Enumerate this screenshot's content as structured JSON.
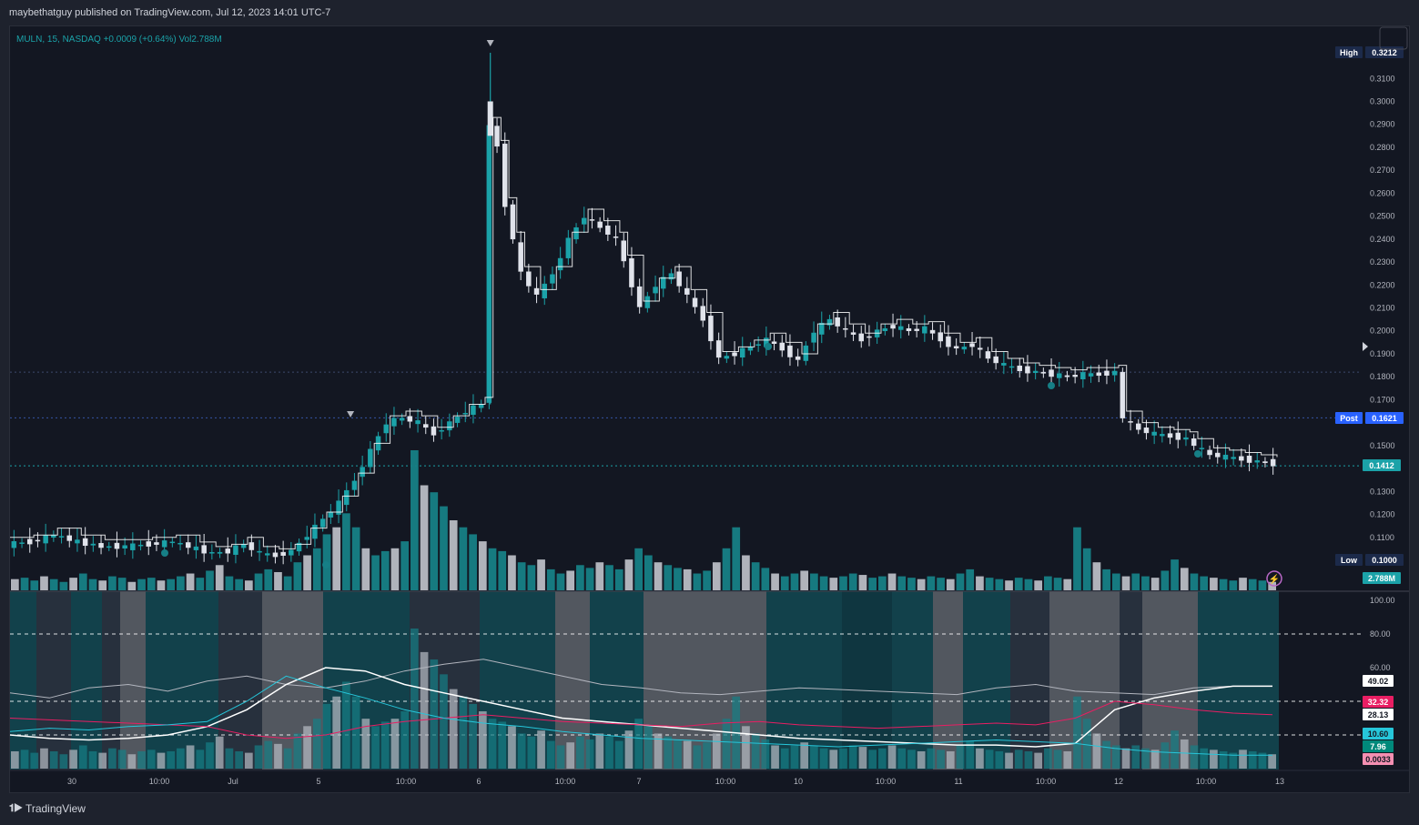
{
  "header": {
    "published": "maybethatguy published on TradingView.com, Jul 12, 2023 14:01 UTC-7"
  },
  "legend": {
    "symbol": "MULN, 15, NASDAQ",
    "change": "+0.0009 (+0.64%)",
    "volume": "Vol2.788M"
  },
  "footer": {
    "brand": "TradingView"
  },
  "colors": {
    "bg": "#131722",
    "up": "#1ba2a8",
    "down": "#e0e3eb",
    "accent_blue": "#2962ff",
    "teal_label": "#22a0a8",
    "pink": "#e91e63"
  },
  "chart_data": [
    {
      "type": "candlestick",
      "title": "",
      "price_axis_ticks": [
        "0.3100",
        "0.3000",
        "0.2900",
        "0.2800",
        "0.2700",
        "0.2600",
        "0.2500",
        "0.2400",
        "0.2300",
        "0.2200",
        "0.2100",
        "0.2000",
        "0.1900",
        "0.1800",
        "0.1700",
        "0.1500",
        "0.1300",
        "0.1200",
        "0.1100"
      ],
      "ylim": [
        0.1,
        0.3212
      ],
      "x_tick_labels": [
        "30",
        "10:00",
        "Jul",
        "5",
        "10:00",
        "6",
        "10:00",
        "7",
        "10:00",
        "10",
        "10:00",
        "11",
        "10:00",
        "12",
        "10:00",
        "13"
      ],
      "price_path": [
        [
          0,
          0.107
        ],
        [
          3,
          0.108
        ],
        [
          6,
          0.111
        ],
        [
          9,
          0.108
        ],
        [
          12,
          0.106
        ],
        [
          15,
          0.106
        ],
        [
          18,
          0.107
        ],
        [
          21,
          0.108
        ],
        [
          24,
          0.105
        ],
        [
          26,
          0.103
        ],
        [
          28,
          0.104
        ],
        [
          30,
          0.107
        ],
        [
          32,
          0.103
        ],
        [
          34,
          0.102
        ],
        [
          36,
          0.104
        ],
        [
          38,
          0.111
        ],
        [
          40,
          0.118
        ],
        [
          42,
          0.125
        ],
        [
          44,
          0.135
        ],
        [
          46,
          0.148
        ],
        [
          48,
          0.16
        ],
        [
          50,
          0.162
        ],
        [
          52,
          0.16
        ],
        [
          54,
          0.155
        ],
        [
          56,
          0.16
        ],
        [
          58,
          0.165
        ],
        [
          60,
          0.168
        ],
        [
          61,
          0.29
        ],
        [
          62,
          0.28
        ],
        [
          63,
          0.255
        ],
        [
          64,
          0.24
        ],
        [
          65,
          0.225
        ],
        [
          67,
          0.215
        ],
        [
          69,
          0.225
        ],
        [
          71,
          0.24
        ],
        [
          73,
          0.25
        ],
        [
          75,
          0.245
        ],
        [
          77,
          0.24
        ],
        [
          78,
          0.23
        ],
        [
          80,
          0.21
        ],
        [
          82,
          0.22
        ],
        [
          84,
          0.225
        ],
        [
          86,
          0.215
        ],
        [
          88,
          0.205
        ],
        [
          90,
          0.188
        ],
        [
          92,
          0.19
        ],
        [
          94,
          0.193
        ],
        [
          96,
          0.196
        ],
        [
          98,
          0.192
        ],
        [
          100,
          0.187
        ],
        [
          102,
          0.2
        ],
        [
          104,
          0.205
        ],
        [
          106,
          0.2
        ],
        [
          108,
          0.196
        ],
        [
          110,
          0.2
        ],
        [
          112,
          0.202
        ],
        [
          114,
          0.2
        ],
        [
          116,
          0.201
        ],
        [
          118,
          0.196
        ],
        [
          120,
          0.192
        ],
        [
          122,
          0.194
        ],
        [
          124,
          0.188
        ],
        [
          126,
          0.185
        ],
        [
          128,
          0.183
        ],
        [
          130,
          0.182
        ],
        [
          132,
          0.181
        ],
        [
          134,
          0.18
        ],
        [
          136,
          0.181
        ],
        [
          138,
          0.181
        ],
        [
          140,
          0.182
        ],
        [
          141,
          0.162
        ],
        [
          143,
          0.157
        ],
        [
          145,
          0.155
        ],
        [
          147,
          0.154
        ],
        [
          149,
          0.153
        ],
        [
          150,
          0.15
        ],
        [
          152,
          0.146
        ],
        [
          154,
          0.145
        ],
        [
          156,
          0.144
        ],
        [
          158,
          0.143
        ],
        [
          160,
          0.142
        ]
      ],
      "volume_bars": [
        0.08,
        0.09,
        0.07,
        0.1,
        0.08,
        0.06,
        0.09,
        0.12,
        0.08,
        0.07,
        0.1,
        0.09,
        0.06,
        0.08,
        0.09,
        0.07,
        0.08,
        0.1,
        0.12,
        0.09,
        0.14,
        0.18,
        0.1,
        0.08,
        0.07,
        0.12,
        0.15,
        0.13,
        0.1,
        0.2,
        0.25,
        0.3,
        0.4,
        0.45,
        0.55,
        0.45,
        0.3,
        0.25,
        0.28,
        0.3,
        0.35,
        1.0,
        0.75,
        0.7,
        0.6,
        0.5,
        0.45,
        0.4,
        0.35,
        0.3,
        0.28,
        0.25,
        0.2,
        0.18,
        0.22,
        0.15,
        0.12,
        0.14,
        0.18,
        0.16,
        0.2,
        0.18,
        0.15,
        0.22,
        0.3,
        0.25,
        0.2,
        0.18,
        0.16,
        0.15,
        0.12,
        0.14,
        0.2,
        0.3,
        0.45,
        0.25,
        0.2,
        0.16,
        0.12,
        0.1,
        0.12,
        0.14,
        0.12,
        0.1,
        0.09,
        0.1,
        0.12,
        0.11,
        0.09,
        0.1,
        0.12,
        0.1,
        0.09,
        0.08,
        0.1,
        0.09,
        0.08,
        0.12,
        0.15,
        0.1,
        0.09,
        0.08,
        0.07,
        0.09,
        0.08,
        0.07,
        0.1,
        0.09,
        0.08,
        0.45,
        0.3,
        0.2,
        0.15,
        0.12,
        0.1,
        0.12,
        0.1,
        0.09,
        0.14,
        0.22,
        0.16,
        0.12,
        0.1,
        0.09,
        0.08,
        0.07,
        0.09,
        0.08,
        0.07,
        0.06
      ],
      "price_labels": {
        "high": {
          "tag": "High",
          "value": "0.3212"
        },
        "post": {
          "tag": "Post",
          "value": "0.1621"
        },
        "last": {
          "value": "0.1412"
        },
        "low": {
          "tag": "Low",
          "value": "0.1000"
        },
        "volume": {
          "value": "2.788M"
        }
      }
    },
    {
      "type": "line",
      "title": "",
      "oscillator_axis_ticks": [
        "100.00",
        "80.00",
        "60.00"
      ],
      "ylim": [
        0,
        100
      ],
      "levels": [
        80,
        40,
        20
      ],
      "series": [
        {
          "color": "#b2b5be",
          "values": [
            45,
            42,
            48,
            50,
            46,
            52,
            55,
            50,
            48,
            52,
            58,
            62,
            65,
            60,
            55,
            50,
            48,
            45,
            44,
            46,
            48,
            47,
            46,
            45,
            44,
            48,
            50,
            46,
            45,
            44,
            48,
            49,
            49
          ]
        },
        {
          "color": "#ffffff",
          "values": [
            20,
            18,
            17,
            18,
            20,
            25,
            35,
            50,
            60,
            58,
            50,
            45,
            40,
            35,
            30,
            28,
            26,
            24,
            22,
            20,
            18,
            17,
            16,
            15,
            14,
            14,
            13,
            15,
            35,
            42,
            46,
            49,
            49
          ]
        },
        {
          "color": "#e91e63",
          "values": [
            30,
            29,
            28,
            27,
            26,
            25,
            20,
            18,
            20,
            25,
            28,
            30,
            32,
            30,
            28,
            27,
            26,
            25,
            27,
            28,
            26,
            25,
            24,
            25,
            26,
            27,
            26,
            30,
            40,
            38,
            35,
            33,
            32
          ]
        },
        {
          "color": "#26c6da",
          "values": [
            22,
            24,
            23,
            25,
            26,
            28,
            40,
            55,
            48,
            42,
            35,
            30,
            27,
            25,
            22,
            20,
            18,
            17,
            16,
            15,
            14,
            13,
            14,
            15,
            16,
            17,
            16,
            15,
            12,
            10,
            9,
            8,
            8
          ]
        }
      ],
      "value_labels": [
        {
          "value": "49.02",
          "bg": "#ffffff",
          "fg": "#131722"
        },
        {
          "value": "32.32",
          "bg": "#e91e63",
          "fg": "#ffffff"
        },
        {
          "value": "28.13",
          "bg": "#ffffff",
          "fg": "#131722"
        },
        {
          "value": "10.60",
          "bg": "#26c6da",
          "fg": "#131722"
        },
        {
          "value": "7.96",
          "bg": "#00897b",
          "fg": "#ffffff"
        },
        {
          "value": "0.0033",
          "bg": "#f48fb1",
          "fg": "#131722"
        }
      ]
    }
  ]
}
